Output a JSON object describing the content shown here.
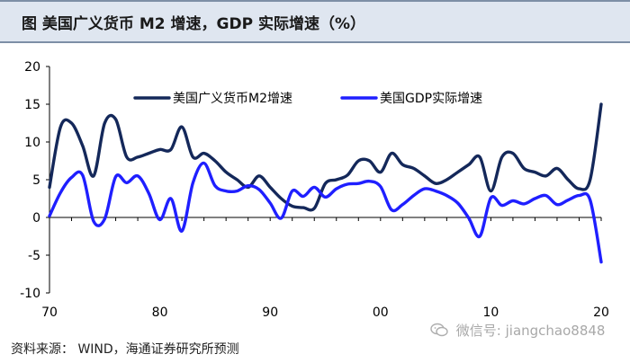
{
  "header": {
    "title": "图    美国广义货币 M2 增速，GDP 实际增速（%）"
  },
  "footer": {
    "source": "资料来源：  WIND，海通证券研究所预测"
  },
  "watermark": {
    "text": "微信号: jiangchao8848"
  },
  "colors": {
    "m2": "#14285a",
    "gdp": "#1f1fff",
    "axis": "#000000"
  },
  "chart_data": {
    "type": "line",
    "title": "美国广义货币 M2 增速，GDP 实际增速（%）",
    "xlabel": "",
    "ylabel": "",
    "xlim": [
      1970,
      2020
    ],
    "ylim": [
      -10,
      20
    ],
    "yticks": [
      20,
      15,
      10,
      5,
      0,
      -5,
      -10
    ],
    "ytick_labels": [
      "20",
      "15",
      "10",
      "5",
      "0",
      "-5",
      "-10"
    ],
    "xticks": [
      1970,
      1980,
      1990,
      2000,
      2010,
      2020
    ],
    "xtick_labels": [
      "70",
      "80",
      "90",
      "00",
      "10",
      "20"
    ],
    "legend_position": "top",
    "series": [
      {
        "name": "美国广义货币M2增速",
        "color": "#14285a",
        "x": [
          1970,
          1971,
          1972,
          1973,
          1974,
          1975,
          1976,
          1977,
          1978,
          1979,
          1980,
          1981,
          1982,
          1983,
          1984,
          1985,
          1986,
          1987,
          1988,
          1989,
          1990,
          1991,
          1992,
          1993,
          1994,
          1995,
          1996,
          1997,
          1998,
          1999,
          2000,
          2001,
          2002,
          2003,
          2004,
          2005,
          2006,
          2007,
          2008,
          2009,
          2010,
          2011,
          2012,
          2013,
          2014,
          2015,
          2016,
          2017,
          2018,
          2019,
          2020
        ],
        "values": [
          4,
          12,
          12.5,
          9.5,
          5.5,
          12.5,
          13,
          8,
          8,
          8.5,
          9,
          9,
          12,
          8,
          8.5,
          7.5,
          6,
          5,
          4,
          5.5,
          4,
          2.5,
          1.5,
          1.3,
          1.2,
          4.5,
          5,
          5.6,
          7.5,
          7.5,
          6,
          8.5,
          7,
          6.5,
          5.5,
          4.5,
          5,
          6,
          7,
          8,
          3.5,
          8,
          8.5,
          6.5,
          6,
          5.5,
          6.5,
          5,
          3.8,
          5,
          15
        ]
      },
      {
        "name": "美国GDP实际增速",
        "color": "#1f1fff",
        "x": [
          1970,
          1971,
          1972,
          1973,
          1974,
          1975,
          1976,
          1977,
          1978,
          1979,
          1980,
          1981,
          1982,
          1983,
          1984,
          1985,
          1986,
          1987,
          1988,
          1989,
          1990,
          1991,
          1992,
          1993,
          1994,
          1995,
          1996,
          1997,
          1998,
          1999,
          2000,
          2001,
          2002,
          2003,
          2004,
          2005,
          2006,
          2007,
          2008,
          2009,
          2010,
          2011,
          2012,
          2013,
          2014,
          2015,
          2016,
          2017,
          2018,
          2019,
          2020
        ],
        "values": [
          0.2,
          3.3,
          5.3,
          5.6,
          -0.5,
          -0.2,
          5.4,
          4.6,
          5.5,
          3.2,
          -0.3,
          2.5,
          -1.8,
          4.6,
          7.2,
          4.2,
          3.5,
          3.5,
          4.2,
          3.7,
          1.9,
          -0.1,
          3.5,
          2.8,
          4.0,
          2.7,
          3.8,
          4.4,
          4.5,
          4.8,
          4.1,
          1.0,
          1.7,
          2.9,
          3.8,
          3.5,
          2.9,
          1.9,
          -0.1,
          -2.5,
          2.6,
          1.6,
          2.2,
          1.8,
          2.5,
          2.9,
          1.7,
          2.3,
          2.9,
          2.3,
          -5.9
        ]
      }
    ]
  }
}
